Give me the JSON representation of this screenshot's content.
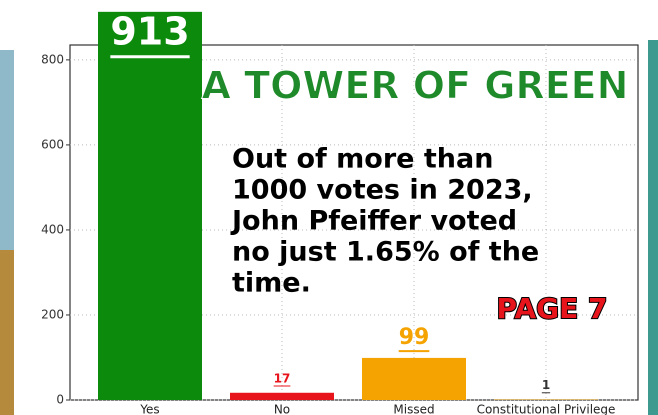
{
  "chart_data": {
    "type": "bar",
    "title": "A TOWER OF GREEN",
    "annotation": [
      "Out of more than",
      "1000 votes in 2023,",
      "John Pfeiffer voted",
      "no just 1.65% of the",
      "time."
    ],
    "badge": "PAGE 7",
    "categories": [
      "Yes",
      "No",
      "Missed",
      "Constitutional Privilege"
    ],
    "values": [
      913,
      17,
      99,
      1
    ],
    "colors": [
      "#0b8a0b",
      "#e8141c",
      "#f5a300",
      "#f5a300"
    ],
    "label_colors": [
      "#ffffff",
      "#e8141c",
      "#f5a300",
      "#333333"
    ],
    "ylim": [
      0,
      835
    ],
    "yticks": [
      0,
      200,
      400,
      600,
      800
    ],
    "grid": true
  }
}
